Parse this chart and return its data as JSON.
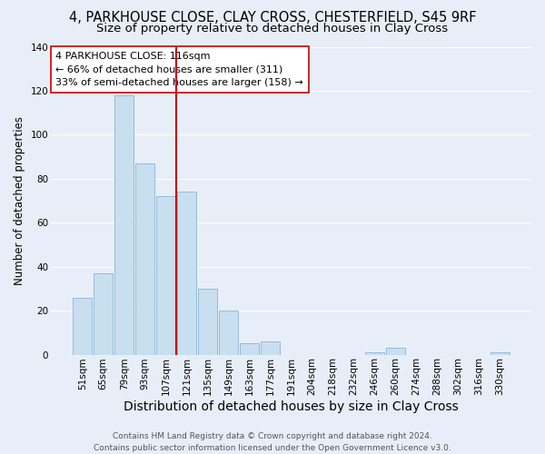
{
  "title": "4, PARKHOUSE CLOSE, CLAY CROSS, CHESTERFIELD, S45 9RF",
  "subtitle": "Size of property relative to detached houses in Clay Cross",
  "xlabel": "Distribution of detached houses by size in Clay Cross",
  "ylabel": "Number of detached properties",
  "bar_color": "#c8dff0",
  "bar_edge_color": "#8ab4d4",
  "categories": [
    "51sqm",
    "65sqm",
    "79sqm",
    "93sqm",
    "107sqm",
    "121sqm",
    "135sqm",
    "149sqm",
    "163sqm",
    "177sqm",
    "191sqm",
    "204sqm",
    "218sqm",
    "232sqm",
    "246sqm",
    "260sqm",
    "274sqm",
    "288sqm",
    "302sqm",
    "316sqm",
    "330sqm"
  ],
  "values": [
    26,
    37,
    118,
    87,
    72,
    74,
    30,
    20,
    5,
    6,
    0,
    0,
    0,
    0,
    1,
    3,
    0,
    0,
    0,
    0,
    1
  ],
  "ylim": [
    0,
    140
  ],
  "yticks": [
    0,
    20,
    40,
    60,
    80,
    100,
    120,
    140
  ],
  "vline_index": 4.5,
  "vline_color": "#cc0000",
  "annotation_title": "4 PARKHOUSE CLOSE: 116sqm",
  "annotation_line1": "← 66% of detached houses are smaller (311)",
  "annotation_line2": "33% of semi-detached houses are larger (158) →",
  "footer1": "Contains HM Land Registry data © Crown copyright and database right 2024.",
  "footer2": "Contains public sector information licensed under the Open Government Licence v3.0.",
  "background_color": "#e8eef8",
  "grid_color": "#ffffff",
  "title_fontsize": 10.5,
  "subtitle_fontsize": 9.5,
  "xlabel_fontsize": 10,
  "ylabel_fontsize": 8.5,
  "tick_fontsize": 7.5,
  "footer_fontsize": 6.5
}
